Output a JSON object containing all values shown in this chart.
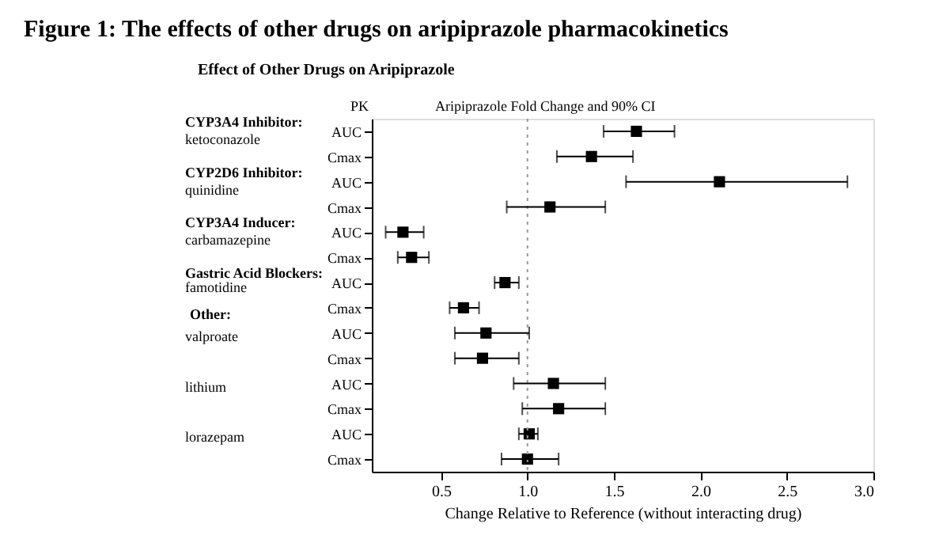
{
  "chart_data": {
    "type": "scatter",
    "title": "Figure 1: The effects of other drugs on aripiprazole pharmacokinetics",
    "subtitle": "Effect of Other Drugs on Aripiprazole",
    "xlabel": "Change Relative to Reference (without interacting drug)",
    "orientation": "horizontal",
    "marker": "square",
    "grid": false,
    "categories": [
      "AUC",
      "Cmax",
      "AUC",
      "Cmax",
      "AUC",
      "Cmax",
      "AUC",
      "Cmax",
      "AUC",
      "Cmax",
      "AUC",
      "Cmax",
      "AUC",
      "Cmax"
    ],
    "values": [
      1.63,
      1.37,
      2.11,
      1.13,
      0.28,
      0.33,
      0.87,
      0.63,
      0.76,
      0.74,
      1.15,
      1.18,
      1.01,
      1.0
    ],
    "errors": [
      [
        1.44,
        1.85
      ],
      [
        1.17,
        1.61
      ],
      [
        1.57,
        2.85
      ],
      [
        0.88,
        1.45
      ],
      [
        0.18,
        0.4
      ],
      [
        0.25,
        0.43
      ],
      [
        0.81,
        0.95
      ],
      [
        0.55,
        0.72
      ],
      [
        0.58,
        1.01
      ],
      [
        0.58,
        0.95
      ],
      [
        0.92,
        1.45
      ],
      [
        0.97,
        1.45
      ],
      [
        0.95,
        1.06
      ],
      [
        0.85,
        1.18
      ]
    ],
    "color": "#000000",
    "xlim": [
      0.1,
      3.0
    ],
    "xticks": [
      0.5,
      {
        "value": 1,
        "label": "1.0"
      },
      1.5,
      {
        "value": 2,
        "label": "2.0"
      },
      2.5,
      {
        "value": 3,
        "label": "3.0"
      }
    ],
    "ref_lines": [
      {
        "axis": "x",
        "value": 1,
        "color": "#999999",
        "line_style": "dotted"
      }
    ],
    "annotations": [
      "PK",
      "Aripiprazole Fold Change and 90% CI",
      "CYP3A4 Inhibitor:",
      "ketoconazole",
      "CYP2D6 Inhibitor:",
      "quinidine",
      "CYP3A4 Inducer:",
      "carbamazepine",
      "Gastric Acid Blockers:",
      "famotidine",
      "Other:",
      "valproate",
      "lithium",
      "lorazepam"
    ]
  }
}
